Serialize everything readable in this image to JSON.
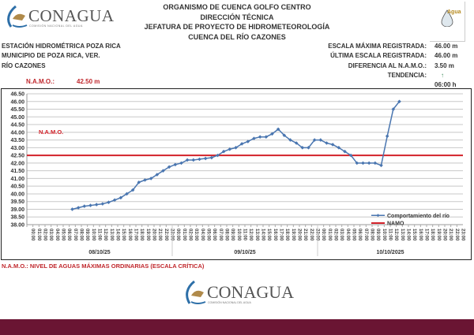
{
  "header": {
    "logo_text": "CONAGUA",
    "logo_sub": "COMISIÓN NACIONAL DEL AGUA",
    "lines": [
      "ORGANISMO DE CUENCA GOLFO CENTRO",
      "DIRECCIÓN TÉCNICA",
      "JEFATURA DE PROYECTO DE HIDROMETEOROLOGÍA",
      "CUENCA DEL RÍO CAZONES"
    ],
    "right_logo_text": "Agua"
  },
  "station": [
    "ESTACIÓN HIDROMÉTRICA POZA RICA",
    "MUNICIPIO DE POZA RICA, VER.",
    "RÍO CAZONES"
  ],
  "namo": {
    "label": "N.A.M.O.:",
    "value": "42.50 m"
  },
  "stats": [
    {
      "label": "ESCALA MÁXIMA REGISTRADA:",
      "value": "46.00 m"
    },
    {
      "label": "ÚLTIMA ESCALA REGISTRADA:",
      "value": "46.00 m"
    },
    {
      "label": "DIFERENCIA AL N.A.M.O.:",
      "value": "3.50 m"
    },
    {
      "label": "TENDENCIA:",
      "value": "↑"
    },
    {
      "label": "",
      "value": "06:00 h"
    }
  ],
  "colors": {
    "series": "#4a76b0",
    "namo": "#d3222a",
    "band": "#6a1533",
    "trend": "#3a8a5a"
  },
  "chart_data": {
    "type": "line",
    "ylim": [
      38.0,
      46.5
    ],
    "ytick_step": 0.5,
    "grid": true,
    "categories_hours": [
      "00:00",
      "01:00",
      "02:00",
      "03:00",
      "04:00",
      "05:00",
      "06:00",
      "07:00",
      "08:00",
      "09:00",
      "10:00",
      "11:00",
      "12:00",
      "13:00",
      "14:00",
      "15:00",
      "16:00",
      "17:00",
      "18:00",
      "19:00",
      "20:00",
      "21:00",
      "22:00",
      "23:00"
    ],
    "days": [
      "08/10/25",
      "09/10/25",
      "10/10/2025"
    ],
    "start_index": 7,
    "namo_label": "N.A.M.O.",
    "series": [
      {
        "name": "Comportamiento del río",
        "values": [
          39.0,
          39.1,
          39.2,
          39.25,
          39.3,
          39.35,
          39.45,
          39.6,
          39.75,
          40.0,
          40.25,
          40.75,
          40.9,
          41.0,
          41.25,
          41.5,
          41.75,
          41.9,
          42.0,
          42.2,
          42.2,
          42.25,
          42.3,
          42.35,
          42.5,
          42.75,
          42.9,
          43.0,
          43.25,
          43.4,
          43.6,
          43.7,
          43.7,
          43.9,
          44.2,
          43.8,
          43.5,
          43.3,
          43.0,
          43.0,
          43.5,
          43.5,
          43.3,
          43.2,
          43.0,
          42.75,
          42.5,
          42.0,
          42.0,
          42.0,
          42.0,
          41.85,
          43.75,
          45.5,
          46.0
        ]
      },
      {
        "name": "NAMO",
        "value": 42.5
      }
    ],
    "legend_position": "bottom-right"
  },
  "footnote": "N.A.M.O.: NIVEL DE AGUAS MÁXIMAS ORDINARIAS (ESCALA CRÍTICA)"
}
